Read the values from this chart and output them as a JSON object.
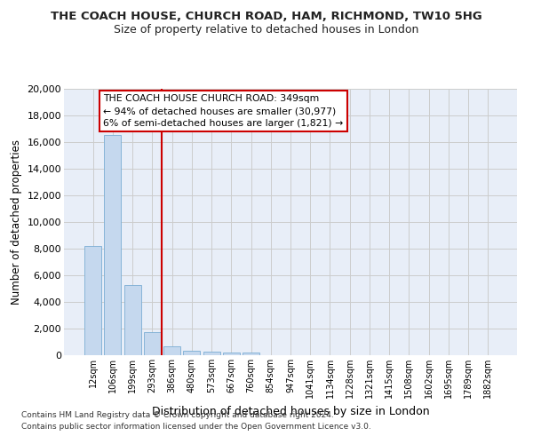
{
  "title1": "THE COACH HOUSE, CHURCH ROAD, HAM, RICHMOND, TW10 5HG",
  "title2": "Size of property relative to detached houses in London",
  "xlabel": "Distribution of detached houses by size in London",
  "ylabel": "Number of detached properties",
  "categories": [
    "12sqm",
    "106sqm",
    "199sqm",
    "293sqm",
    "386sqm",
    "480sqm",
    "573sqm",
    "667sqm",
    "760sqm",
    "854sqm",
    "947sqm",
    "1041sqm",
    "1134sqm",
    "1228sqm",
    "1321sqm",
    "1415sqm",
    "1508sqm",
    "1602sqm",
    "1695sqm",
    "1789sqm",
    "1882sqm"
  ],
  "bar_values": [
    8200,
    16500,
    5300,
    1750,
    700,
    330,
    270,
    210,
    200,
    0,
    0,
    0,
    0,
    0,
    0,
    0,
    0,
    0,
    0,
    0,
    0
  ],
  "bar_color": "#c5d8ee",
  "bar_edge_color": "#7aadd4",
  "vline_x": 3.5,
  "vline_color": "#cc0000",
  "annotation_text": "THE COACH HOUSE CHURCH ROAD: 349sqm\n← 94% of detached houses are smaller (30,977)\n6% of semi-detached houses are larger (1,821) →",
  "annotation_box_color": "#ffffff",
  "annotation_box_edge": "#cc0000",
  "ylim": [
    0,
    20000
  ],
  "yticks": [
    0,
    2000,
    4000,
    6000,
    8000,
    10000,
    12000,
    14000,
    16000,
    18000,
    20000
  ],
  "grid_color": "#cccccc",
  "bg_color": "#e8eef8",
  "footer1": "Contains HM Land Registry data © Crown copyright and database right 2024.",
  "footer2": "Contains public sector information licensed under the Open Government Licence v3.0."
}
